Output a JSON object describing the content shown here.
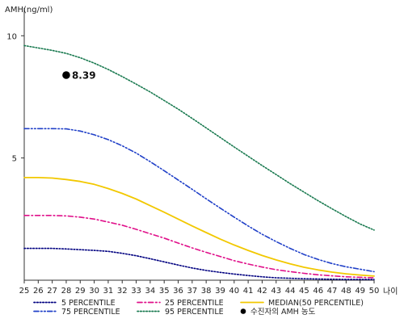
{
  "chart_data": {
    "type": "line",
    "ylabel": "AMH(ng/ml)",
    "xlabel": "나이",
    "xlim": [
      25,
      50
    ],
    "ylim": [
      0,
      11
    ],
    "y_ticks": [
      5,
      10
    ],
    "x": [
      25,
      26,
      27,
      28,
      29,
      30,
      31,
      32,
      33,
      34,
      35,
      36,
      37,
      38,
      39,
      40,
      41,
      42,
      43,
      44,
      45,
      46,
      47,
      48,
      49,
      50
    ],
    "grid": false,
    "series": [
      {
        "name": "5 PERCENTILE",
        "color": "#000080",
        "style": "dotted",
        "values": [
          1.3,
          1.3,
          1.3,
          1.28,
          1.25,
          1.22,
          1.18,
          1.1,
          1.0,
          0.88,
          0.75,
          0.62,
          0.5,
          0.4,
          0.32,
          0.25,
          0.19,
          0.14,
          0.1,
          0.08,
          0.06,
          0.05,
          0.04,
          0.03,
          0.03,
          0.03
        ]
      },
      {
        "name": "25 PERCENTILE",
        "color": "#e0108a",
        "style": "dashdot",
        "values": [
          2.65,
          2.65,
          2.65,
          2.63,
          2.58,
          2.5,
          2.38,
          2.25,
          2.08,
          1.9,
          1.72,
          1.52,
          1.32,
          1.14,
          0.97,
          0.8,
          0.66,
          0.54,
          0.43,
          0.35,
          0.28,
          0.22,
          0.18,
          0.14,
          0.12,
          0.1
        ]
      },
      {
        "name": "MEDIAN(50 PERCENTILE)",
        "color": "#f2c800",
        "style": "solid",
        "values": [
          4.2,
          4.2,
          4.18,
          4.12,
          4.04,
          3.92,
          3.75,
          3.55,
          3.32,
          3.05,
          2.78,
          2.5,
          2.22,
          1.95,
          1.68,
          1.44,
          1.22,
          1.01,
          0.83,
          0.67,
          0.53,
          0.42,
          0.33,
          0.26,
          0.21,
          0.17
        ]
      },
      {
        "name": "75 PERCENTILE",
        "color": "#2040c8",
        "style": "dashdotdot",
        "values": [
          6.2,
          6.2,
          6.2,
          6.19,
          6.1,
          5.95,
          5.75,
          5.5,
          5.2,
          4.85,
          4.48,
          4.1,
          3.72,
          3.33,
          2.95,
          2.58,
          2.22,
          1.88,
          1.58,
          1.3,
          1.05,
          0.85,
          0.68,
          0.55,
          0.45,
          0.35
        ]
      },
      {
        "name": "95 PERCENTILE",
        "color": "#1a7a50",
        "style": "dotted",
        "values": [
          9.6,
          9.5,
          9.4,
          9.28,
          9.1,
          8.88,
          8.62,
          8.33,
          8.02,
          7.7,
          7.35,
          7.0,
          6.62,
          6.23,
          5.84,
          5.45,
          5.07,
          4.69,
          4.32,
          3.95,
          3.6,
          3.25,
          2.92,
          2.6,
          2.3,
          2.05
        ]
      }
    ],
    "marker": {
      "name": "수진자의 AMH 농도",
      "x": 28,
      "y": 8.39,
      "label": "8.39",
      "color": "#000000"
    },
    "legend": {
      "position": "bottom",
      "columns": 3,
      "order": [
        "5 PERCENTILE",
        "25 PERCENTILE",
        "MEDIAN(50 PERCENTILE)",
        "75 PERCENTILE",
        "95 PERCENTILE",
        "수진자의 AMH 농도"
      ]
    }
  }
}
